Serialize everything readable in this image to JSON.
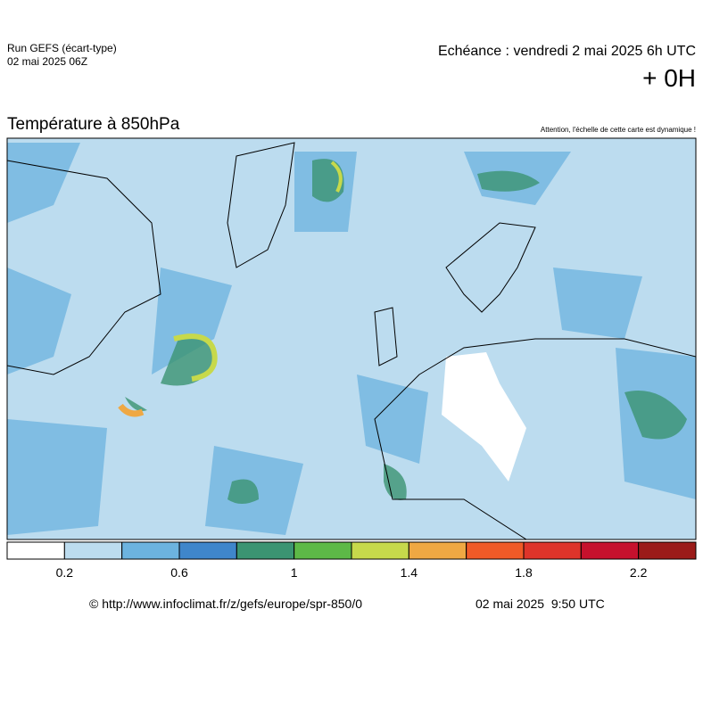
{
  "header": {
    "run": "Run GEFS (écart-type)",
    "run_date": "02 mai 2025 06Z",
    "valid": "Echéance : vendredi 2 mai 2025 6h UTC",
    "lead": "+ 0H"
  },
  "map": {
    "title": "Température à 850hPa",
    "notice": "Attention, l'échelle de cette carte est dynamique !"
  },
  "colorbar": {
    "lim": [
      0,
      2.4
    ],
    "ticks": [
      0.2,
      0.6,
      1,
      1.4,
      1.8,
      2.2
    ],
    "colors": [
      "#ffffff",
      "#bcdcef",
      "#6cb3df",
      "#3f86cb",
      "#3b9472",
      "#5db947",
      "#c7d94b",
      "#efa843",
      "#f05a27",
      "#de342a",
      "#c6112d",
      "#9b1b19"
    ]
  },
  "footer": {
    "url": "© http://www.infoclimat.fr/z/gefs/europe/spr-850/0",
    "date": "02 mai 2025  9:50 UTC"
  }
}
